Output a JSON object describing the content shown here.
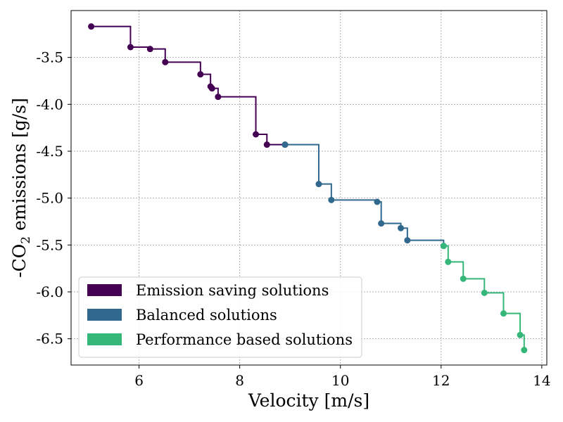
{
  "chart_data": {
    "type": "line",
    "xlabel": "Velocity [m/s]",
    "ylabel": {
      "prefix": "-CO",
      "subscript": "2",
      "suffix": " emissions [g/s]"
    },
    "xlim": [
      4.65,
      14.1
    ],
    "ylim": [
      -6.78,
      -3.0
    ],
    "xticks": [
      {
        "value": 6,
        "label": "6"
      },
      {
        "value": 8,
        "label": "8"
      },
      {
        "value": 10,
        "label": "10"
      },
      {
        "value": 12,
        "label": "12"
      },
      {
        "value": 14,
        "label": "14"
      }
    ],
    "yticks": [
      {
        "value": -3.5,
        "label": "-3.5"
      },
      {
        "value": -4.0,
        "label": "-4.0"
      },
      {
        "value": -4.5,
        "label": "-4.5"
      },
      {
        "value": -5.0,
        "label": "-5.0"
      },
      {
        "value": -5.5,
        "label": "-5.5"
      },
      {
        "value": -6.0,
        "label": "-6.0"
      },
      {
        "value": -6.5,
        "label": "-6.5"
      }
    ],
    "grid": true,
    "legend_position": "bottom-left",
    "series": [
      {
        "name": "Emission saving solutions",
        "color": "#440154",
        "points": [
          [
            5.05,
            -3.17
          ],
          [
            5.83,
            -3.39
          ],
          [
            6.22,
            -3.41
          ],
          [
            6.52,
            -3.55
          ],
          [
            7.22,
            -3.68
          ],
          [
            7.42,
            -3.81
          ],
          [
            7.45,
            -3.83
          ],
          [
            7.57,
            -3.92
          ],
          [
            8.32,
            -4.32
          ],
          [
            8.54,
            -4.43
          ],
          [
            8.9,
            -4.43
          ]
        ]
      },
      {
        "name": "Balanced solutions",
        "color": "#31688e",
        "points": [
          [
            8.9,
            -4.43
          ],
          [
            9.57,
            -4.85
          ],
          [
            9.82,
            -5.02
          ],
          [
            10.73,
            -5.04
          ],
          [
            10.81,
            -5.27
          ],
          [
            11.2,
            -5.32
          ],
          [
            11.33,
            -5.45
          ],
          [
            12.05,
            -5.51
          ]
        ]
      },
      {
        "name": "Performance based solutions",
        "color": "#35b779",
        "points": [
          [
            12.05,
            -5.51
          ],
          [
            12.14,
            -5.68
          ],
          [
            12.44,
            -5.86
          ],
          [
            12.86,
            -6.01
          ],
          [
            13.24,
            -6.23
          ],
          [
            13.57,
            -6.46
          ],
          [
            13.65,
            -6.62
          ]
        ]
      }
    ]
  }
}
